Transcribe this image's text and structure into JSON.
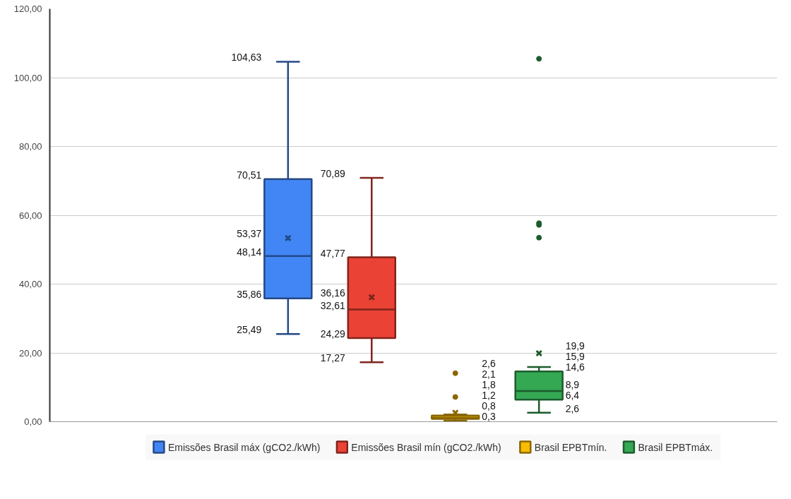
{
  "chart_data": {
    "type": "box",
    "categories": [
      null
    ],
    "ylim": [
      0,
      120
    ],
    "yticks": [
      {
        "value": 0,
        "label": "0,00"
      },
      {
        "value": 20,
        "label": "20,00"
      },
      {
        "value": 40,
        "label": "40,00"
      },
      {
        "value": 60,
        "label": "60,00"
      },
      {
        "value": 80,
        "label": "80,00"
      },
      {
        "value": 100,
        "label": "100,00"
      },
      {
        "value": 120,
        "label": "120,00"
      }
    ],
    "grid": "y",
    "legend": "bottom",
    "marker": "cross",
    "data_labels": true,
    "series": [
      {
        "name": "Emissões Brasil máx (gCO2./kWh)",
        "color": "#4285f4",
        "boxes": [
          {
            "low": 25.49,
            "q1": 35.86,
            "median": 48.14,
            "q3": 70.51,
            "high": 104.63,
            "mean": 53.37
          }
        ]
      },
      {
        "name": "Emissões Brasil mín (gCO2./kWh)",
        "color": "#ea4335",
        "boxes": [
          {
            "low": 17.27,
            "q1": 24.29,
            "median": 32.61,
            "q3": 47.77,
            "high": 70.89,
            "mean": 36.16
          }
        ]
      },
      {
        "name": "Brasil EPBTmín.",
        "color": "#fbbc04",
        "boxes": [
          {
            "low": 0.3,
            "q1": 0.8,
            "median": 1.2,
            "q3": 1.8,
            "high": 2.1,
            "mean": 2.6,
            "outliers": [
              7.2,
              14.1
            ]
          }
        ]
      },
      {
        "name": "Brasil EPBTmáx.",
        "color": "#34a853",
        "boxes": [
          {
            "low": 2.6,
            "q1": 6.4,
            "median": 8.9,
            "q3": 14.6,
            "high": 15.9,
            "mean": 19.9,
            "outliers": [
              53.5,
              57.2,
              57.7,
              105.5
            ]
          }
        ]
      }
    ],
    "annotations": [
      "25,49",
      "35,86",
      "48,14",
      "70,51",
      "104,63",
      "53,37",
      "17,27",
      "24,29",
      "32,61",
      "47,77",
      "70,89",
      "36,16",
      "0,3",
      "0,8",
      "1,2",
      "1,8",
      "2,1",
      "2,6",
      "2,6",
      "6,4",
      "8,9",
      "14,6",
      "15,9",
      "19,9"
    ]
  }
}
